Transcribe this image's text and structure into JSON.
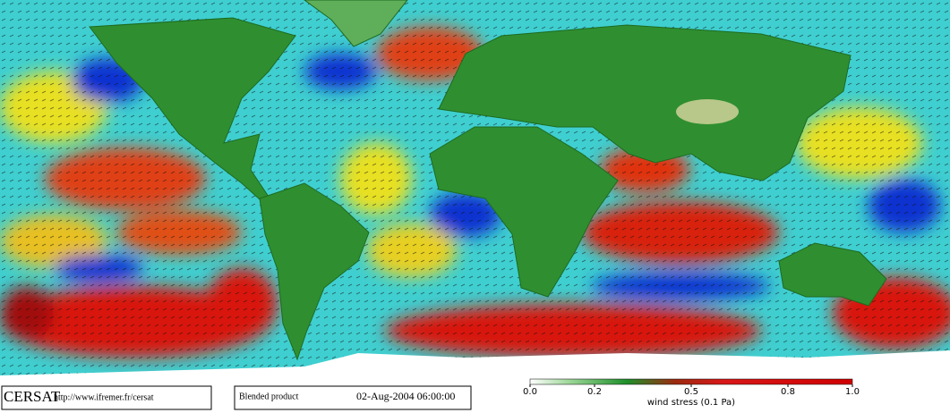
{
  "footer": {
    "logo": "CERSAT",
    "url": "http://www.ifremer.fr/cersat",
    "product": "Blended product",
    "timestamp": "02-Aug-2004 06:00:00"
  },
  "colorbar": {
    "label": "wind stress (0.1 Pa)",
    "lim": [
      0,
      1
    ],
    "ticks": [
      {
        "value": 0,
        "label": "0.0"
      },
      0.2,
      0.5,
      0.8,
      {
        "value": 1,
        "label": "1.0"
      }
    ]
  }
}
